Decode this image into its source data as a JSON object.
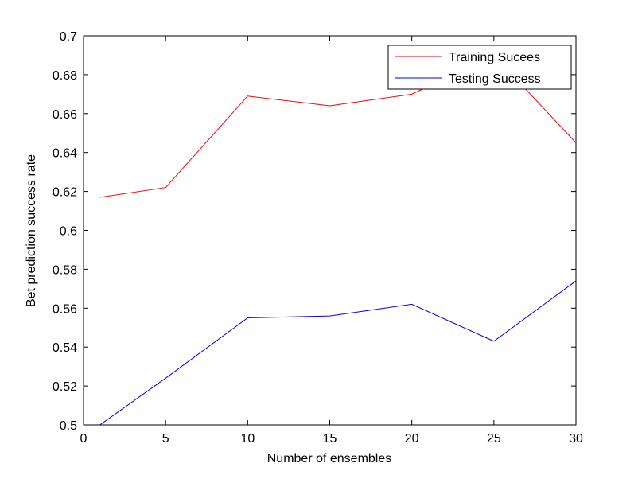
{
  "chart_data": {
    "type": "line",
    "xlabel": "Number of ensembles",
    "ylabel": "Bet prediction success rate",
    "xlim": [
      0,
      30
    ],
    "ylim": [
      0.5,
      0.7
    ],
    "xticks": [
      0,
      5,
      10,
      15,
      20,
      25,
      30
    ],
    "yticks": [
      0.5,
      0.52,
      0.54,
      0.56,
      0.58,
      0.6,
      0.62,
      0.64,
      0.66,
      0.68,
      0.7
    ],
    "xtick_labels": [
      "0",
      "5",
      "10",
      "15",
      "20",
      "25",
      "30"
    ],
    "ytick_labels": [
      "0.5",
      "0.52",
      "0.54",
      "0.56",
      "0.58",
      "0.6",
      "0.62",
      "0.64",
      "0.66",
      "0.68",
      "0.7"
    ],
    "x": [
      1,
      5,
      10,
      15,
      20,
      25,
      30
    ],
    "series": [
      {
        "name": "Training Sucees",
        "color": "#ff0000",
        "values": [
          0.617,
          0.622,
          0.669,
          0.664,
          0.67,
          0.69,
          0.645
        ]
      },
      {
        "name": "Testing Success",
        "color": "#0000ff",
        "values": [
          0.5,
          0.524,
          0.555,
          0.556,
          0.562,
          0.543,
          0.574
        ]
      }
    ],
    "legend_position": "top-right",
    "grid": false
  }
}
